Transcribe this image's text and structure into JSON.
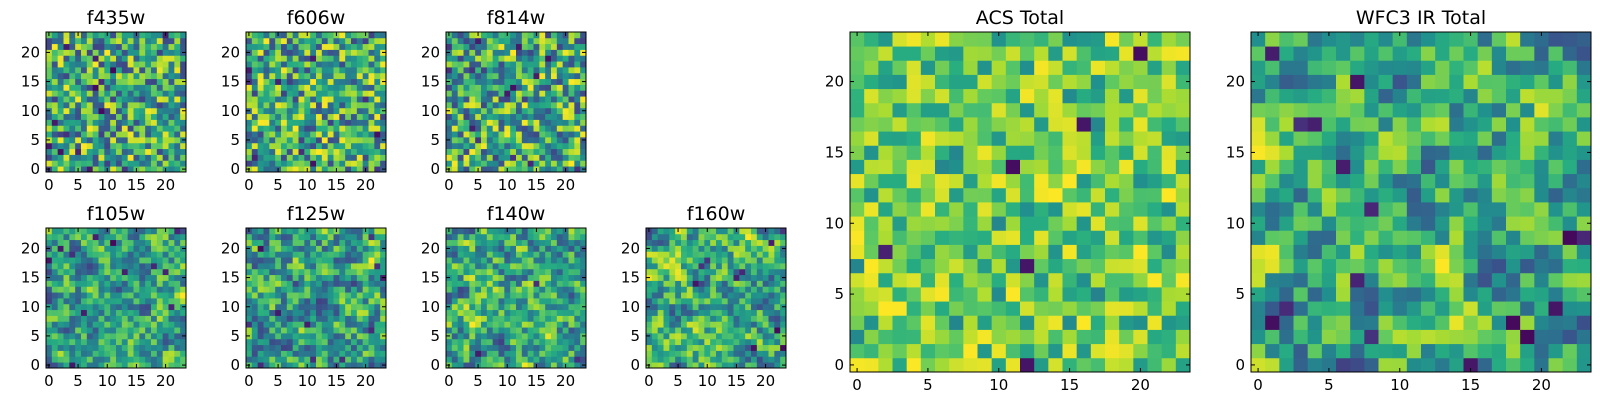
{
  "chart_data": [
    {
      "type": "heatmap",
      "title": "f435w",
      "grid_size": [
        24,
        24
      ],
      "xlim": [
        0,
        24
      ],
      "ylim": [
        0,
        24
      ],
      "xticks": [
        "0",
        "5",
        "10",
        "15",
        "20"
      ],
      "yticks": [
        "0",
        "5",
        "10",
        "15",
        "20"
      ],
      "colormap": "viridis",
      "style": "uniform-noise",
      "seed": 11,
      "values": "24×24 pixel intensities, noise-like (values not individually readable)"
    },
    {
      "type": "heatmap",
      "title": "f606w",
      "grid_size": [
        24,
        24
      ],
      "xlim": [
        0,
        24
      ],
      "ylim": [
        0,
        24
      ],
      "xticks": [
        "0",
        "5",
        "10",
        "15",
        "20"
      ],
      "yticks": [
        "0",
        "5",
        "10",
        "15",
        "20"
      ],
      "colormap": "viridis",
      "style": "uniform-noise",
      "seed": 23,
      "values": "24×24 pixel intensities, noise-like (values not individually readable)"
    },
    {
      "type": "heatmap",
      "title": "f814w",
      "grid_size": [
        24,
        24
      ],
      "xlim": [
        0,
        24
      ],
      "ylim": [
        0,
        24
      ],
      "xticks": [
        "0",
        "5",
        "10",
        "15",
        "20"
      ],
      "yticks": [
        "0",
        "5",
        "10",
        "15",
        "20"
      ],
      "colormap": "viridis",
      "style": "uniform-noise",
      "seed": 37,
      "values": "24×24 pixel intensities, noise-like (values not individually readable)"
    },
    {
      "type": "heatmap",
      "title": "f105w",
      "grid_size": [
        24,
        24
      ],
      "xlim": [
        0,
        24
      ],
      "ylim": [
        0,
        24
      ],
      "xticks": [
        "0",
        "5",
        "10",
        "15",
        "20"
      ],
      "yticks": [
        "0",
        "5",
        "10",
        "15",
        "20"
      ],
      "colormap": "viridis",
      "style": "correlated-noise",
      "seed": 41,
      "values": "24×24 pixel intensities, noise-like (values not individually readable)"
    },
    {
      "type": "heatmap",
      "title": "f125w",
      "grid_size": [
        24,
        24
      ],
      "xlim": [
        0,
        24
      ],
      "ylim": [
        0,
        24
      ],
      "xticks": [
        "0",
        "5",
        "10",
        "15",
        "20"
      ],
      "yticks": [
        "0",
        "5",
        "10",
        "15",
        "20"
      ],
      "colormap": "viridis",
      "style": "correlated-noise",
      "seed": 53,
      "values": "24×24 pixel intensities, noise-like (values not individually readable)"
    },
    {
      "type": "heatmap",
      "title": "f140w",
      "grid_size": [
        24,
        24
      ],
      "xlim": [
        0,
        24
      ],
      "ylim": [
        0,
        24
      ],
      "xticks": [
        "0",
        "5",
        "10",
        "15",
        "20"
      ],
      "yticks": [
        "0",
        "5",
        "10",
        "15",
        "20"
      ],
      "colormap": "viridis",
      "style": "correlated-noise",
      "seed": 67,
      "values": "24×24 pixel intensities, noise-like (values not individually readable)"
    },
    {
      "type": "heatmap",
      "title": "f160w",
      "grid_size": [
        24,
        24
      ],
      "xlim": [
        0,
        24
      ],
      "ylim": [
        0,
        24
      ],
      "xticks": [
        "0",
        "5",
        "10",
        "15",
        "20"
      ],
      "yticks": [
        "0",
        "5",
        "10",
        "15",
        "20"
      ],
      "colormap": "viridis",
      "style": "correlated-noise",
      "seed": 79,
      "values": "24×24 pixel intensities, noise-like (values not individually readable)"
    },
    {
      "type": "heatmap",
      "title": "ACS Total",
      "grid_size": [
        24,
        24
      ],
      "xlim": [
        0,
        24
      ],
      "ylim": [
        0,
        24
      ],
      "xticks": [
        "0",
        "5",
        "10",
        "15",
        "20"
      ],
      "yticks": [
        "0",
        "5",
        "10",
        "15",
        "20"
      ],
      "colormap": "viridis",
      "style": "uniform-noise-bright",
      "seed": 83,
      "values": "24×24 pixel intensities, noise-like (values not individually readable)"
    },
    {
      "type": "heatmap",
      "title": "WFC3 IR Total",
      "grid_size": [
        24,
        24
      ],
      "xlim": [
        0,
        24
      ],
      "ylim": [
        0,
        24
      ],
      "xticks": [
        "0",
        "5",
        "10",
        "15",
        "20"
      ],
      "yticks": [
        "0",
        "5",
        "10",
        "15",
        "20"
      ],
      "colormap": "viridis",
      "style": "correlated-noise",
      "seed": 97,
      "values": "24×24 pixel intensities, noise-like (values not individually readable)"
    }
  ]
}
